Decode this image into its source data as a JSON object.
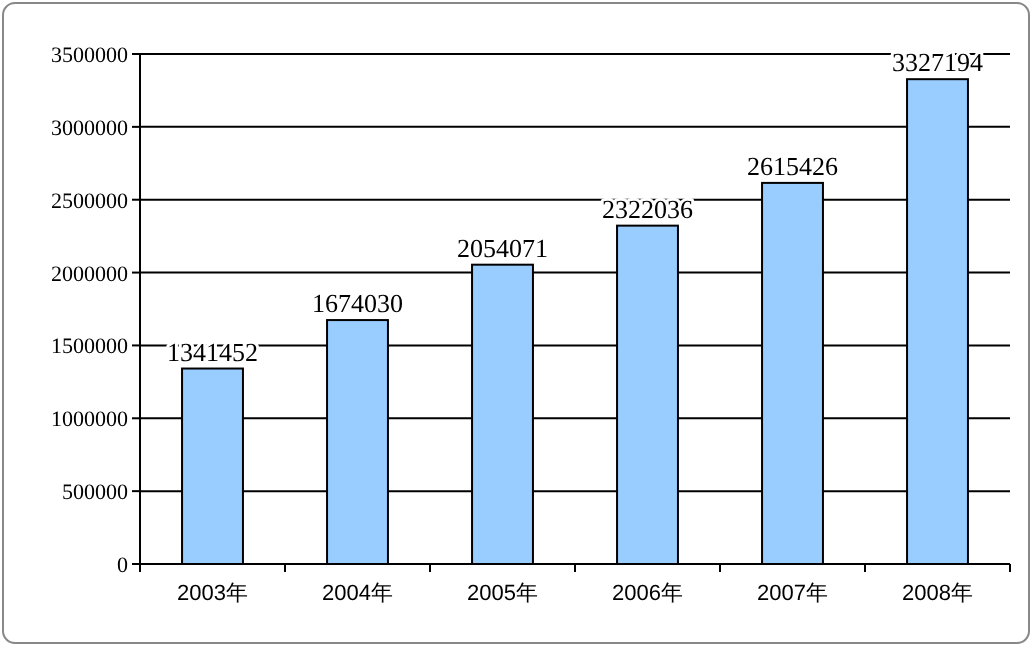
{
  "chart_data": {
    "type": "bar",
    "categories": [
      "2003年",
      "2004年",
      "2005年",
      "2006年",
      "2007年",
      "2008年"
    ],
    "values": [
      1341452,
      1674030,
      2054071,
      2322036,
      2615426,
      3327194
    ],
    "color": "#99ccff",
    "ylim": [
      0,
      3500000
    ],
    "yticks": [
      0,
      500000,
      1000000,
      1500000,
      2000000,
      2500000,
      3000000,
      3500000
    ],
    "grid": "y",
    "data_labels": true
  }
}
